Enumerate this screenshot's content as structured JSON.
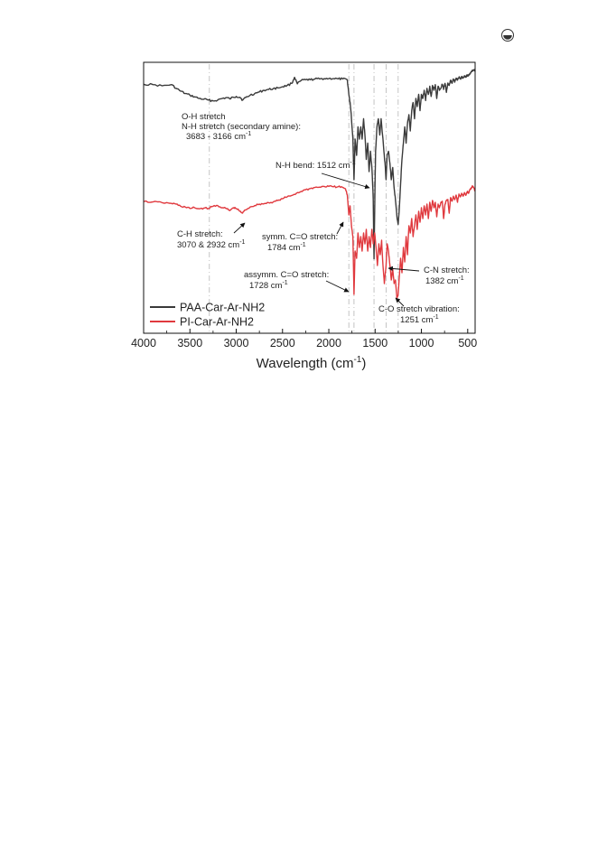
{
  "chart_data": {
    "type": "line",
    "title": "",
    "ylabel": "",
    "xlabel": {
      "text": "Wavelength (cm",
      "sup": "-1",
      "close": ")"
    },
    "xlim": [
      4000,
      420
    ],
    "x_reversed": true,
    "grid": false,
    "legend_position": "bottom-left",
    "x_ticks": [
      {
        "value": 4000,
        "label": "4000"
      },
      {
        "value": 3500,
        "label": "3500"
      },
      {
        "value": 3000,
        "label": "3000"
      },
      {
        "value": 2500,
        "label": "2500"
      },
      {
        "value": 2000,
        "label": "2000"
      },
      {
        "value": 1500,
        "label": "1500"
      },
      {
        "value": 1000,
        "label": "1000"
      },
      {
        "value": 500,
        "label": "500"
      }
    ],
    "reference_lines": [
      3290,
      1784,
      1728,
      1512,
      1382,
      1251
    ],
    "series": [
      {
        "name": "PAA-Car-Ar-NH2",
        "color": "#3a3a3a",
        "points": [
          [
            4000,
            0.5
          ],
          [
            3900,
            0.6
          ],
          [
            3800,
            0.9
          ],
          [
            3700,
            0.6
          ],
          [
            3650,
            1.5
          ],
          [
            3600,
            2.2
          ],
          [
            3550,
            2.8
          ],
          [
            3500,
            3.2
          ],
          [
            3450,
            3.6
          ],
          [
            3400,
            4.0
          ],
          [
            3350,
            4.2
          ],
          [
            3300,
            4.4
          ],
          [
            3250,
            4.6
          ],
          [
            3200,
            4.4
          ],
          [
            3150,
            4.0
          ],
          [
            3100,
            3.8
          ],
          [
            3070,
            4.1
          ],
          [
            3030,
            3.7
          ],
          [
            3000,
            3.5
          ],
          [
            2960,
            3.7
          ],
          [
            2930,
            4.4
          ],
          [
            2900,
            3.8
          ],
          [
            2850,
            3.2
          ],
          [
            2800,
            2.8
          ],
          [
            2750,
            2.4
          ],
          [
            2700,
            2.0
          ],
          [
            2650,
            1.8
          ],
          [
            2600,
            1.6
          ],
          [
            2550,
            1.4
          ],
          [
            2500,
            1.1
          ],
          [
            2450,
            0.8
          ],
          [
            2400,
            0.3
          ],
          [
            2370,
            -1.2
          ],
          [
            2340,
            0.4
          ],
          [
            2300,
            -0.4
          ],
          [
            2250,
            -0.6
          ],
          [
            2200,
            -0.6
          ],
          [
            2150,
            -0.8
          ],
          [
            2100,
            -0.8
          ],
          [
            2050,
            -0.9
          ],
          [
            2000,
            -0.9
          ],
          [
            1950,
            -0.9
          ],
          [
            1900,
            -0.8
          ],
          [
            1850,
            -0.8
          ],
          [
            1800,
            -0.6
          ],
          [
            1784,
            3.0
          ],
          [
            1770,
            5.0
          ],
          [
            1755,
            9.0
          ],
          [
            1740,
            14.0
          ],
          [
            1728,
            24.0
          ],
          [
            1716,
            14.0
          ],
          [
            1700,
            18.0
          ],
          [
            1685,
            11.0
          ],
          [
            1670,
            14.0
          ],
          [
            1655,
            11.0
          ],
          [
            1640,
            14.0
          ],
          [
            1625,
            9.0
          ],
          [
            1610,
            13.0
          ],
          [
            1595,
            19.0
          ],
          [
            1580,
            15.0
          ],
          [
            1565,
            22.0
          ],
          [
            1550,
            17.0
          ],
          [
            1535,
            21.0
          ],
          [
            1520,
            29.0
          ],
          [
            1512,
            43.5
          ],
          [
            1504,
            30.0
          ],
          [
            1495,
            17.0
          ],
          [
            1480,
            11.0
          ],
          [
            1465,
            9.0
          ],
          [
            1450,
            13.0
          ],
          [
            1435,
            9.0
          ],
          [
            1420,
            13.0
          ],
          [
            1405,
            17.0
          ],
          [
            1390,
            21.0
          ],
          [
            1382,
            24.0
          ],
          [
            1370,
            18.0
          ],
          [
            1355,
            17.0
          ],
          [
            1340,
            20.0
          ],
          [
            1325,
            24.0
          ],
          [
            1310,
            21.0
          ],
          [
            1295,
            26.0
          ],
          [
            1280,
            29.0
          ],
          [
            1265,
            33.0
          ],
          [
            1251,
            35.0
          ],
          [
            1238,
            31.0
          ],
          [
            1225,
            25.0
          ],
          [
            1210,
            19.0
          ],
          [
            1195,
            15.0
          ],
          [
            1180,
            11.0
          ],
          [
            1165,
            15.0
          ],
          [
            1150,
            10.0
          ],
          [
            1135,
            8.0
          ],
          [
            1120,
            12.0
          ],
          [
            1105,
            7.0
          ],
          [
            1090,
            5.0
          ],
          [
            1075,
            9.0
          ],
          [
            1060,
            4.0
          ],
          [
            1045,
            6.0
          ],
          [
            1030,
            3.0
          ],
          [
            1015,
            7.0
          ],
          [
            1000,
            3.0
          ],
          [
            985,
            4.0
          ],
          [
            970,
            2.0
          ],
          [
            955,
            4.5
          ],
          [
            940,
            1.5
          ],
          [
            925,
            3.0
          ],
          [
            910,
            1.0
          ],
          [
            895,
            3.5
          ],
          [
            880,
            0.8
          ],
          [
            865,
            2.0
          ],
          [
            850,
            0.6
          ],
          [
            835,
            4.0
          ],
          [
            820,
            1.0
          ],
          [
            805,
            2.0
          ],
          [
            790,
            1.5
          ],
          [
            775,
            0.5
          ],
          [
            760,
            1.8
          ],
          [
            745,
            0.3
          ],
          [
            730,
            2.5
          ],
          [
            715,
            0.2
          ],
          [
            700,
            0.8
          ],
          [
            685,
            -0.5
          ],
          [
            670,
            0.3
          ],
          [
            655,
            -0.8
          ],
          [
            640,
            0.0
          ],
          [
            625,
            -1.0
          ],
          [
            610,
            -0.5
          ],
          [
            595,
            -1.2
          ],
          [
            580,
            -0.8
          ],
          [
            565,
            -1.4
          ],
          [
            550,
            -1.0
          ],
          [
            535,
            -1.6
          ],
          [
            520,
            -1.2
          ],
          [
            505,
            -1.8
          ],
          [
            490,
            -1.6
          ],
          [
            475,
            -2.2
          ],
          [
            460,
            -2.6
          ],
          [
            445,
            -2.9
          ],
          [
            430,
            -3.1
          ],
          [
            420,
            -2.6
          ]
        ]
      },
      {
        "name": "PI-Car-Ar-NH2",
        "color": "#e0393e",
        "points": [
          [
            4000,
            0.3
          ],
          [
            3900,
            0.4
          ],
          [
            3800,
            0.6
          ],
          [
            3700,
            0.8
          ],
          [
            3650,
            1.0
          ],
          [
            3600,
            1.6
          ],
          [
            3550,
            1.8
          ],
          [
            3500,
            2.2
          ],
          [
            3450,
            2.0
          ],
          [
            3400,
            2.3
          ],
          [
            3350,
            2.1
          ],
          [
            3300,
            2.2
          ],
          [
            3250,
            1.6
          ],
          [
            3200,
            1.4
          ],
          [
            3150,
            2.0
          ],
          [
            3100,
            2.3
          ],
          [
            3070,
            2.8
          ],
          [
            3030,
            2.0
          ],
          [
            3000,
            2.2
          ],
          [
            2960,
            3.0
          ],
          [
            2932,
            3.5
          ],
          [
            2900,
            2.6
          ],
          [
            2850,
            1.8
          ],
          [
            2800,
            1.4
          ],
          [
            2750,
            1.0
          ],
          [
            2700,
            0.9
          ],
          [
            2650,
            0.6
          ],
          [
            2600,
            0.4
          ],
          [
            2550,
            0.0
          ],
          [
            2500,
            -0.5
          ],
          [
            2450,
            -1.0
          ],
          [
            2400,
            -1.4
          ],
          [
            2350,
            -2.0
          ],
          [
            2300,
            -2.5
          ],
          [
            2250,
            -3.0
          ],
          [
            2200,
            -3.3
          ],
          [
            2150,
            -3.6
          ],
          [
            2100,
            -3.7
          ],
          [
            2050,
            -3.9
          ],
          [
            2000,
            -3.9
          ],
          [
            1950,
            -3.8
          ],
          [
            1900,
            -3.8
          ],
          [
            1850,
            -3.6
          ],
          [
            1820,
            -3.2
          ],
          [
            1800,
            -1.5
          ],
          [
            1784,
            4.0
          ],
          [
            1770,
            1.5
          ],
          [
            1755,
            7.0
          ],
          [
            1740,
            10.0
          ],
          [
            1728,
            26.0
          ],
          [
            1716,
            14.0
          ],
          [
            1700,
            16.0
          ],
          [
            1685,
            9.0
          ],
          [
            1670,
            13.0
          ],
          [
            1655,
            10.0
          ],
          [
            1640,
            14.0
          ],
          [
            1625,
            9.0
          ],
          [
            1610,
            12.0
          ],
          [
            1595,
            8.0
          ],
          [
            1580,
            14.0
          ],
          [
            1565,
            10.0
          ],
          [
            1550,
            13.0
          ],
          [
            1535,
            8.0
          ],
          [
            1520,
            12.0
          ],
          [
            1505,
            9.0
          ],
          [
            1490,
            13.0
          ],
          [
            1475,
            18.0
          ],
          [
            1460,
            12.0
          ],
          [
            1445,
            15.0
          ],
          [
            1430,
            11.0
          ],
          [
            1415,
            18.0
          ],
          [
            1400,
            23.0
          ],
          [
            1382,
            18.0
          ],
          [
            1370,
            12.0
          ],
          [
            1355,
            14.0
          ],
          [
            1340,
            18.0
          ],
          [
            1325,
            22.0
          ],
          [
            1310,
            19.0
          ],
          [
            1295,
            23.0
          ],
          [
            1280,
            22.0
          ],
          [
            1265,
            27.0
          ],
          [
            1251,
            26.0
          ],
          [
            1238,
            21.0
          ],
          [
            1225,
            16.0
          ],
          [
            1210,
            20.0
          ],
          [
            1195,
            13.0
          ],
          [
            1180,
            17.0
          ],
          [
            1165,
            10.0
          ],
          [
            1150,
            15.0
          ],
          [
            1135,
            7.0
          ],
          [
            1120,
            9.0
          ],
          [
            1105,
            5.0
          ],
          [
            1090,
            10.0
          ],
          [
            1075,
            7.0
          ],
          [
            1060,
            4.0
          ],
          [
            1045,
            8.0
          ],
          [
            1030,
            3.0
          ],
          [
            1015,
            6.0
          ],
          [
            1000,
            2.0
          ],
          [
            985,
            5.0
          ],
          [
            970,
            1.5
          ],
          [
            955,
            4.0
          ],
          [
            940,
            1.0
          ],
          [
            925,
            5.0
          ],
          [
            910,
            0.5
          ],
          [
            895,
            3.0
          ],
          [
            880,
            0.0
          ],
          [
            865,
            2.0
          ],
          [
            850,
            0.5
          ],
          [
            835,
            4.5
          ],
          [
            820,
            1.0
          ],
          [
            805,
            2.0
          ],
          [
            790,
            0.5
          ],
          [
            775,
            0.2
          ],
          [
            760,
            5.0
          ],
          [
            745,
            1.0
          ],
          [
            730,
            0.0
          ],
          [
            715,
            -0.3
          ],
          [
            700,
            3.5
          ],
          [
            685,
            -0.8
          ],
          [
            670,
            0.2
          ],
          [
            655,
            -1.2
          ],
          [
            640,
            -0.2
          ],
          [
            625,
            -1.5
          ],
          [
            610,
            0.5
          ],
          [
            595,
            -1.8
          ],
          [
            580,
            -1.0
          ],
          [
            565,
            -2.0
          ],
          [
            550,
            -1.2
          ],
          [
            535,
            -2.2
          ],
          [
            520,
            -1.4
          ],
          [
            505,
            -2.5
          ],
          [
            490,
            -2.0
          ],
          [
            475,
            -3.0
          ],
          [
            460,
            -3.6
          ],
          [
            445,
            -4.0
          ],
          [
            430,
            -3.2
          ],
          [
            420,
            -2.6
          ]
        ]
      }
    ],
    "annotations": [
      {
        "lines": [
          {
            "t": "O-H stretch"
          },
          {
            "t": "N-H stretch (secondary amine):"
          },
          {
            "t": "3683 - 3166 cm",
            "s": "-1"
          }
        ]
      },
      {
        "lines": [
          {
            "t": "N-H bend: 1512 cm",
            "s": "-1"
          }
        ]
      },
      {
        "lines": [
          {
            "t": "C-H stretch:"
          },
          {
            "t": "3070 & 2932 cm",
            "s": "-1"
          }
        ]
      },
      {
        "lines": [
          {
            "t": "symm. C=O stretch:"
          },
          {
            "t": "1784 cm",
            "s": "-1"
          }
        ]
      },
      {
        "lines": [
          {
            "t": "assymm. C=O stretch:"
          },
          {
            "t": "1728 cm",
            "s": "-1"
          }
        ]
      },
      {
        "lines": [
          {
            "t": "C-N stretch:"
          },
          {
            "t": "1382 cm",
            "s": "-1"
          }
        ]
      },
      {
        "lines": [
          {
            "t": "C-O stretch vibration:"
          },
          {
            "t": "1251 cm",
            "s": "-1"
          }
        ]
      }
    ]
  }
}
